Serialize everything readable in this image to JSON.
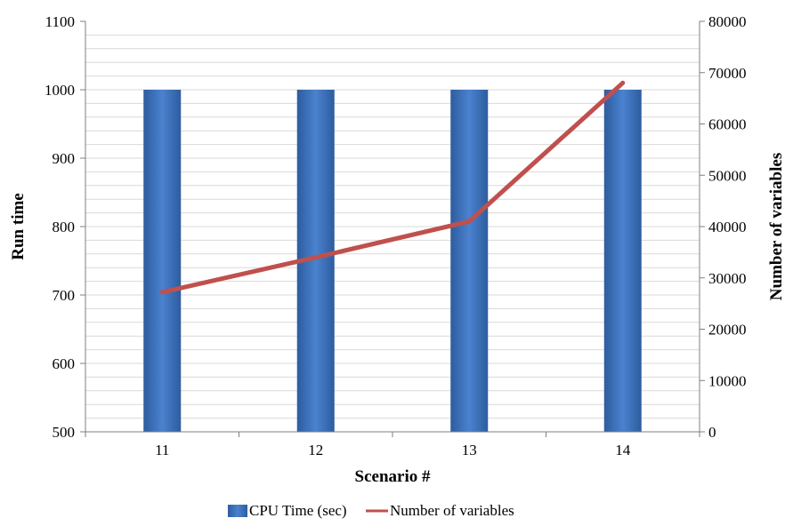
{
  "chart_data": {
    "type": "bar",
    "title": "",
    "categories": [
      "11",
      "12",
      "13",
      "14"
    ],
    "xlabel": "Scenario #",
    "ylabel": "Run time",
    "y2label": "Number of variables",
    "ylim": [
      500,
      1100
    ],
    "y2lim": [
      0,
      80000
    ],
    "yticks": [
      "500",
      "600",
      "700",
      "800",
      "900",
      "1000",
      "1100"
    ],
    "y2ticks": [
      "0",
      "10000",
      "20000",
      "30000",
      "40000",
      "50000",
      "60000",
      "70000",
      "80000"
    ],
    "grid": "horizontal, minor lines every 20",
    "legend_position": "bottom",
    "series": [
      {
        "name": "CPU Time (sec)",
        "kind": "bar",
        "axis": "left",
        "color": "#4477C4",
        "values": [
          1000,
          1000,
          1000,
          1000
        ]
      },
      {
        "name": "Number of variables",
        "kind": "line",
        "axis": "right",
        "color": "#C0504D",
        "values": [
          27200,
          34000,
          41000,
          68000
        ]
      }
    ]
  }
}
